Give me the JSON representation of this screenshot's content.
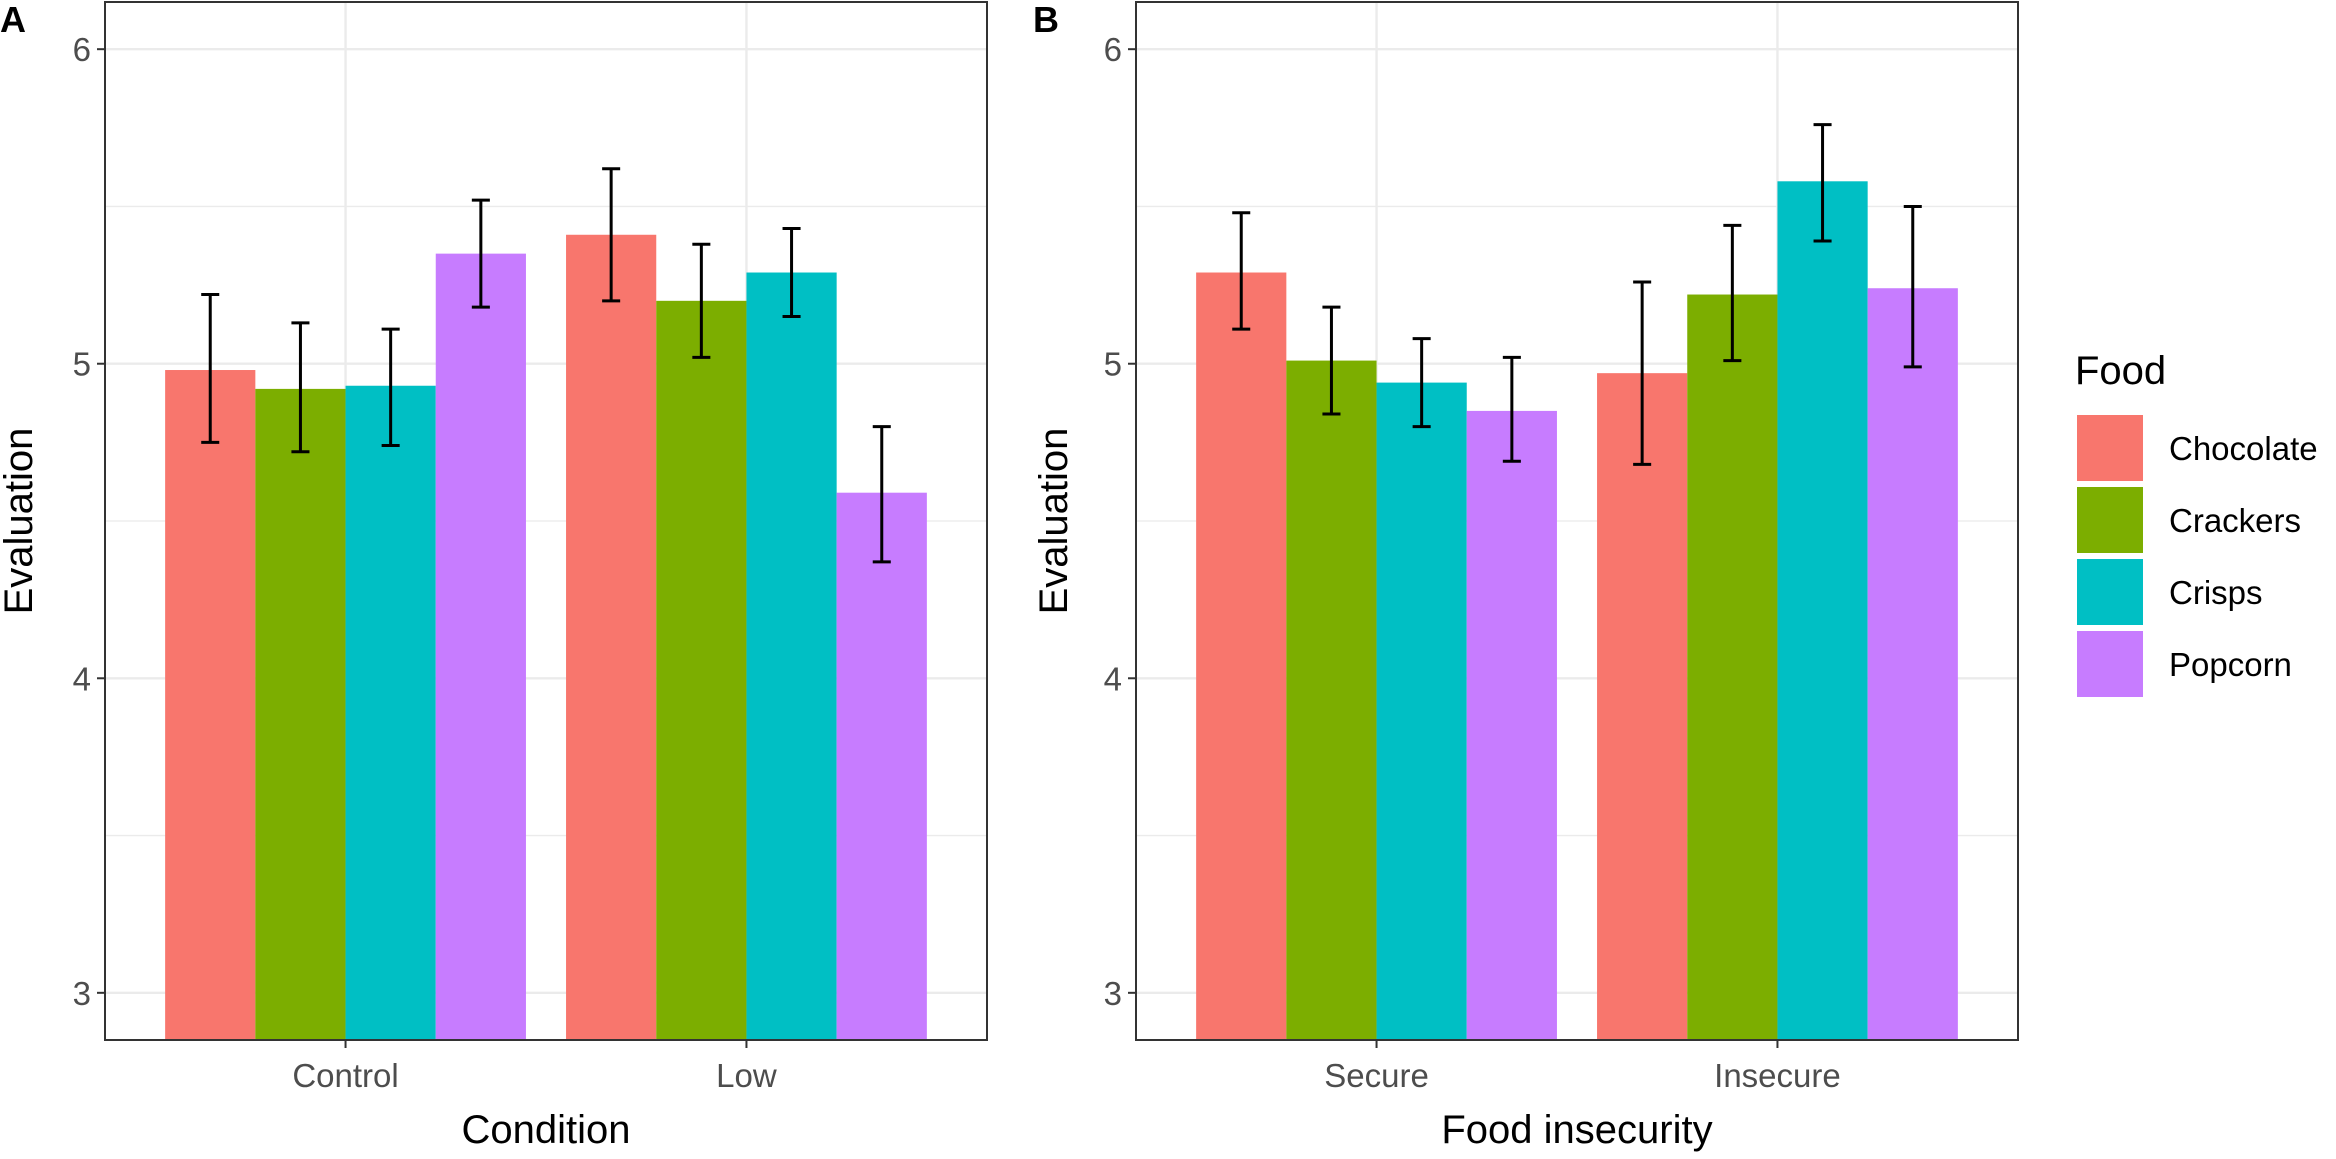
{
  "chart_data": [
    {
      "type": "bar",
      "panel_label": "A",
      "xlabel": "Condition",
      "ylabel": "Evaluation",
      "ylim": [
        2.85,
        6.15
      ],
      "yticks": [
        3,
        4,
        5,
        6
      ],
      "y_tick_labels": [
        "3",
        "4",
        "5",
        "6"
      ],
      "categories": [
        "Control",
        "Low"
      ],
      "series": [
        {
          "name": "Chocolate",
          "values": [
            4.98,
            5.41
          ],
          "err_low": [
            4.75,
            5.2
          ],
          "err_high": [
            5.22,
            5.62
          ]
        },
        {
          "name": "Crackers",
          "values": [
            4.92,
            5.2
          ],
          "err_low": [
            4.72,
            5.02
          ],
          "err_high": [
            5.13,
            5.38
          ]
        },
        {
          "name": "Crisps",
          "values": [
            4.93,
            5.29
          ],
          "err_low": [
            4.74,
            5.15
          ],
          "err_high": [
            5.11,
            5.43
          ]
        },
        {
          "name": "Popcorn",
          "values": [
            5.35,
            4.59
          ],
          "err_low": [
            5.18,
            4.37
          ],
          "err_high": [
            5.52,
            4.8
          ]
        }
      ]
    },
    {
      "type": "bar",
      "panel_label": "B",
      "xlabel": "Food insecurity",
      "ylabel": "Evaluation",
      "ylim": [
        2.85,
        6.15
      ],
      "yticks": [
        3,
        4,
        5,
        6
      ],
      "y_tick_labels": [
        "3",
        "4",
        "5",
        "6"
      ],
      "categories": [
        "Secure",
        "Insecure"
      ],
      "series": [
        {
          "name": "Chocolate",
          "values": [
            5.29,
            4.97
          ],
          "err_low": [
            5.11,
            4.68
          ],
          "err_high": [
            5.48,
            5.26
          ]
        },
        {
          "name": "Crackers",
          "values": [
            5.01,
            5.22
          ],
          "err_low": [
            4.84,
            5.01
          ],
          "err_high": [
            5.18,
            5.44
          ]
        },
        {
          "name": "Crisps",
          "values": [
            4.94,
            5.58
          ],
          "err_low": [
            4.8,
            5.39
          ],
          "err_high": [
            5.08,
            5.76
          ]
        },
        {
          "name": "Popcorn",
          "values": [
            4.85,
            5.24
          ],
          "err_low": [
            4.69,
            4.99
          ],
          "err_high": [
            5.02,
            5.5
          ]
        }
      ]
    }
  ],
  "legend": {
    "title": "Food",
    "items": [
      {
        "label": "Chocolate",
        "color": "#F8766D"
      },
      {
        "label": "Crackers",
        "color": "#7CAE00"
      },
      {
        "label": "Crisps",
        "color": "#00BFC4"
      },
      {
        "label": "Popcorn",
        "color": "#C77CFF"
      }
    ]
  }
}
